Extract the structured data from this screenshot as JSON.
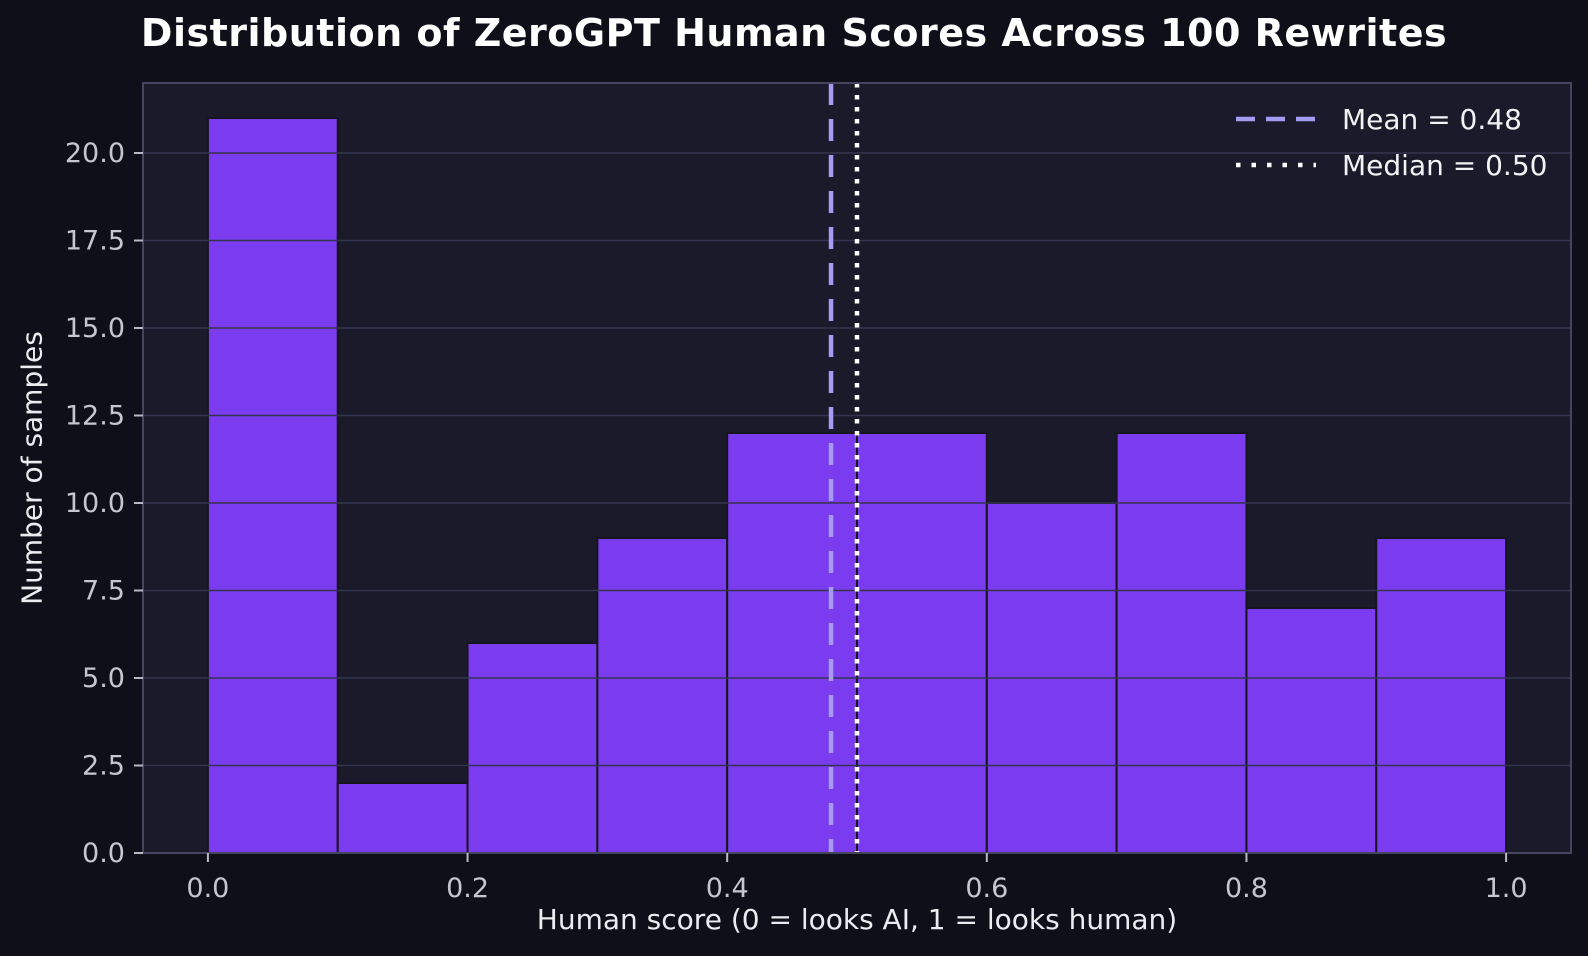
{
  "title": "Distribution of ZeroGPT Human Scores Across 100 Rewrites",
  "chart_data": {
    "type": "bar",
    "subtype": "histogram",
    "title": "Distribution of ZeroGPT Human Scores Across 100 Rewrites",
    "xlabel": "Human score (0 = looks AI, 1 = looks human)",
    "ylabel": "Number of samples",
    "bin_edges": [
      0.0,
      0.1,
      0.2,
      0.3,
      0.4,
      0.5,
      0.6,
      0.7,
      0.8,
      0.9,
      1.0
    ],
    "counts": [
      21,
      2,
      6,
      9,
      12,
      12,
      10,
      12,
      7,
      9
    ],
    "total_samples": 100,
    "mean": 0.48,
    "median": 0.5,
    "xlim": [
      -0.05,
      1.05
    ],
    "ylim": [
      0,
      22
    ],
    "x_ticks": [
      0.0,
      0.2,
      0.4,
      0.6,
      0.8,
      1.0
    ],
    "x_tick_labels": [
      "0.0",
      "0.2",
      "0.4",
      "0.6",
      "0.8",
      "1.0"
    ],
    "y_ticks": [
      0,
      2.5,
      5,
      7.5,
      10,
      12.5,
      15,
      17.5,
      20
    ],
    "y_tick_labels": [
      "0.0",
      "2.5",
      "5.0",
      "7.5",
      "10.0",
      "12.5",
      "15.0",
      "17.5",
      "20.0"
    ],
    "grid": true,
    "grid_on_top_of_bars": true,
    "legend_position": "upper right"
  },
  "legend": {
    "mean_label": "Mean = 0.48",
    "median_label": "Median = 0.50"
  },
  "colors": {
    "figure_bg": "#0f0f19",
    "axes_bg": "#1a1a2a",
    "bar_fill": "#7b3cf0",
    "bar_edge": "#16161f",
    "grid": "#34344e",
    "spine": "#45455f",
    "tick_mark": "#b9b9c4",
    "tick_label": "#c6c6d0",
    "title": "#ffffff",
    "axis_label": "#ececf0",
    "legend_text": "#f2f2f4",
    "mean_line": "#a49cf2",
    "median_line": "#ffffff"
  }
}
